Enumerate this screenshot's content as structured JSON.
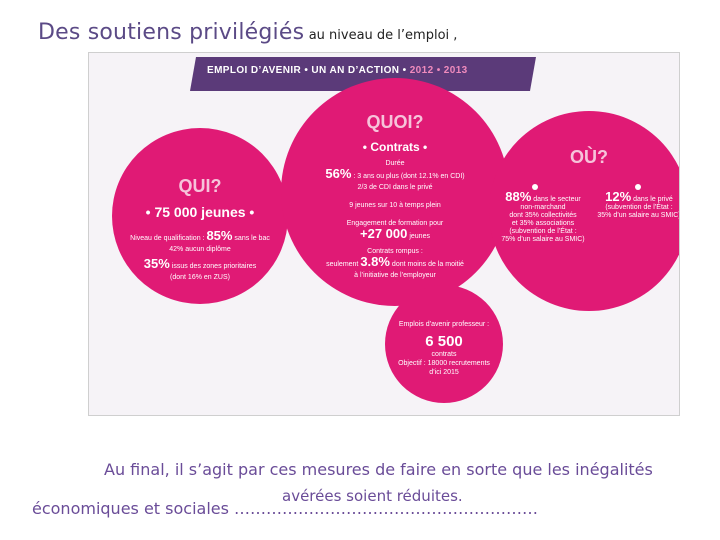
{
  "slide": {
    "title_main": "Des soutiens privilégiés",
    "title_small": "au niveau de l’emploi ,",
    "bottom_line1": "Au final, il s’agit par ces mesures de faire en sorte que les inégalités",
    "bottom_line2_prefix": "économiques et sociales ……",
    "bottom_line2_dots": "……………………………………………",
    "bottom_line2_over": "avérées soient réduites."
  },
  "infographic": {
    "banner_main": "EMPLOI D’AVENIR • UN AN D’ACTION •",
    "banner_years": "2012 • 2013",
    "qui": {
      "heading": "QUI?",
      "youth": "• 75 000 jeunes •",
      "qualif_label": "Niveau de qualification :",
      "qualif_pct": "85%",
      "qualif_note": "sans le bac",
      "qualif_sub": "42% aucun diplôme",
      "zones_pct": "35%",
      "zones_text": "issus des zones prioritaires",
      "zones_sub": "(dont 16% en ZUS)"
    },
    "quoi": {
      "heading": "QUOI?",
      "contracts": "• Contrats •",
      "duree": "Durée",
      "duree_pct": "56%",
      "duree_text": ": 3 ans ou plus (dont 12.1% en CDI)",
      "duree_sub": "2/3 de CDI dans le privé",
      "fulltime": "9 jeunes sur 10 à temps plein",
      "formation": "Engagement de formation pour",
      "formation_num": "+27 000",
      "formation_unit": "jeunes",
      "ruptures": "Contrats rompus :",
      "ruptures_prefix": "seulement",
      "ruptures_pct": "3.8%",
      "ruptures_text": "dont moins de la moitié",
      "ruptures_sub": "à l’initiative de l’employeur"
    },
    "ou": {
      "heading": "OÙ?",
      "left_pct": "88%",
      "left_text": "dans le secteur",
      "left_lines": [
        "non-marchand",
        "dont 35% collectivités",
        "et 35% associations",
        "(subvention de l’État :",
        "75% d’un salaire au SMIC)"
      ],
      "right_pct": "12%",
      "right_text": "dans le privé",
      "right_lines": [
        "(subvention de l’État :",
        "35% d’un salaire au SMIC)"
      ]
    },
    "prof": {
      "title": "Emplois d’avenir professeur :",
      "num": "6 500",
      "unit": "contrats",
      "objective": "Objectif : 18000 recrutements",
      "date": "d’ici 2015"
    },
    "colors": {
      "pink": "#e01a75",
      "banner": "#5b3a79",
      "text": "#6a4c98"
    }
  }
}
